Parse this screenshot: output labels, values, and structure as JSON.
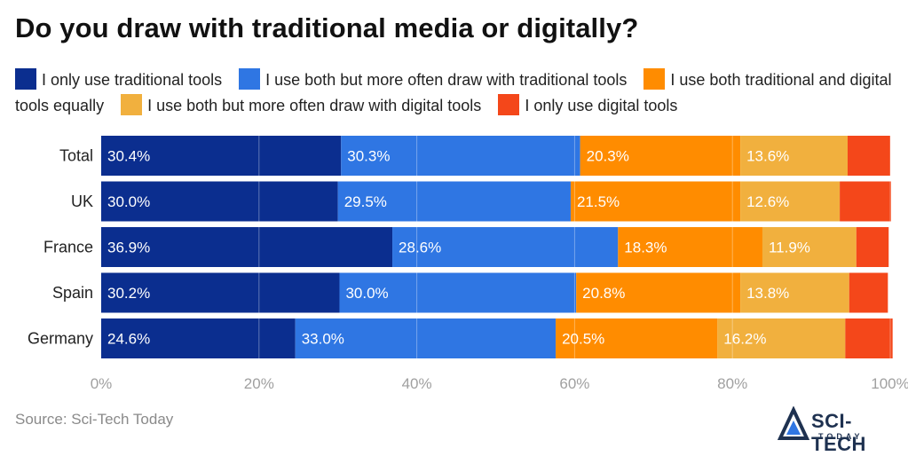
{
  "title": "Do you draw with traditional media or digitally?",
  "source": "Source: Sci-Tech Today",
  "logo": {
    "name": "SCI-TECH",
    "sub": "TODAY"
  },
  "colors": [
    "#0b2e8f",
    "#2f76e3",
    "#ff8c00",
    "#f1b03e",
    "#f4471a"
  ],
  "chart_data": {
    "type": "bar",
    "orientation": "horizontal",
    "stacked": true,
    "categories": [
      "Total",
      "UK",
      "France",
      "Spain",
      "Germany"
    ],
    "series": [
      {
        "name": "I only use traditional tools",
        "values": [
          30.4,
          30.0,
          36.9,
          30.2,
          24.6
        ]
      },
      {
        "name": "I use both but more often draw with traditional tools",
        "values": [
          30.3,
          29.5,
          28.6,
          30.0,
          33.0
        ]
      },
      {
        "name": "I use both traditional and digital tools equally",
        "values": [
          20.3,
          21.5,
          18.3,
          20.8,
          20.5
        ]
      },
      {
        "name": "I use both but more often draw with digital tools",
        "values": [
          13.6,
          12.6,
          11.9,
          13.8,
          16.2
        ]
      },
      {
        "name": "I only use digital tools",
        "values": [
          5.4,
          6.5,
          4.1,
          4.9,
          6.0
        ]
      }
    ],
    "data_labels": [
      [
        "30.4%",
        "30.3%",
        "20.3%",
        "13.6%"
      ],
      [
        "30.0%",
        "29.5%",
        "21.5%",
        "12.6%"
      ],
      [
        "36.9%",
        "28.6%",
        "18.3%",
        "11.9%"
      ],
      [
        "30.2%",
        "30.0%",
        "20.8%",
        "13.8%"
      ],
      [
        "24.6%",
        "33.0%",
        "20.5%",
        "16.2%"
      ]
    ],
    "xticks": [
      "0%",
      "20%",
      "40%",
      "60%",
      "80%",
      "100%"
    ],
    "xlim": [
      0,
      100
    ],
    "grid": true,
    "legend_position": "top"
  }
}
